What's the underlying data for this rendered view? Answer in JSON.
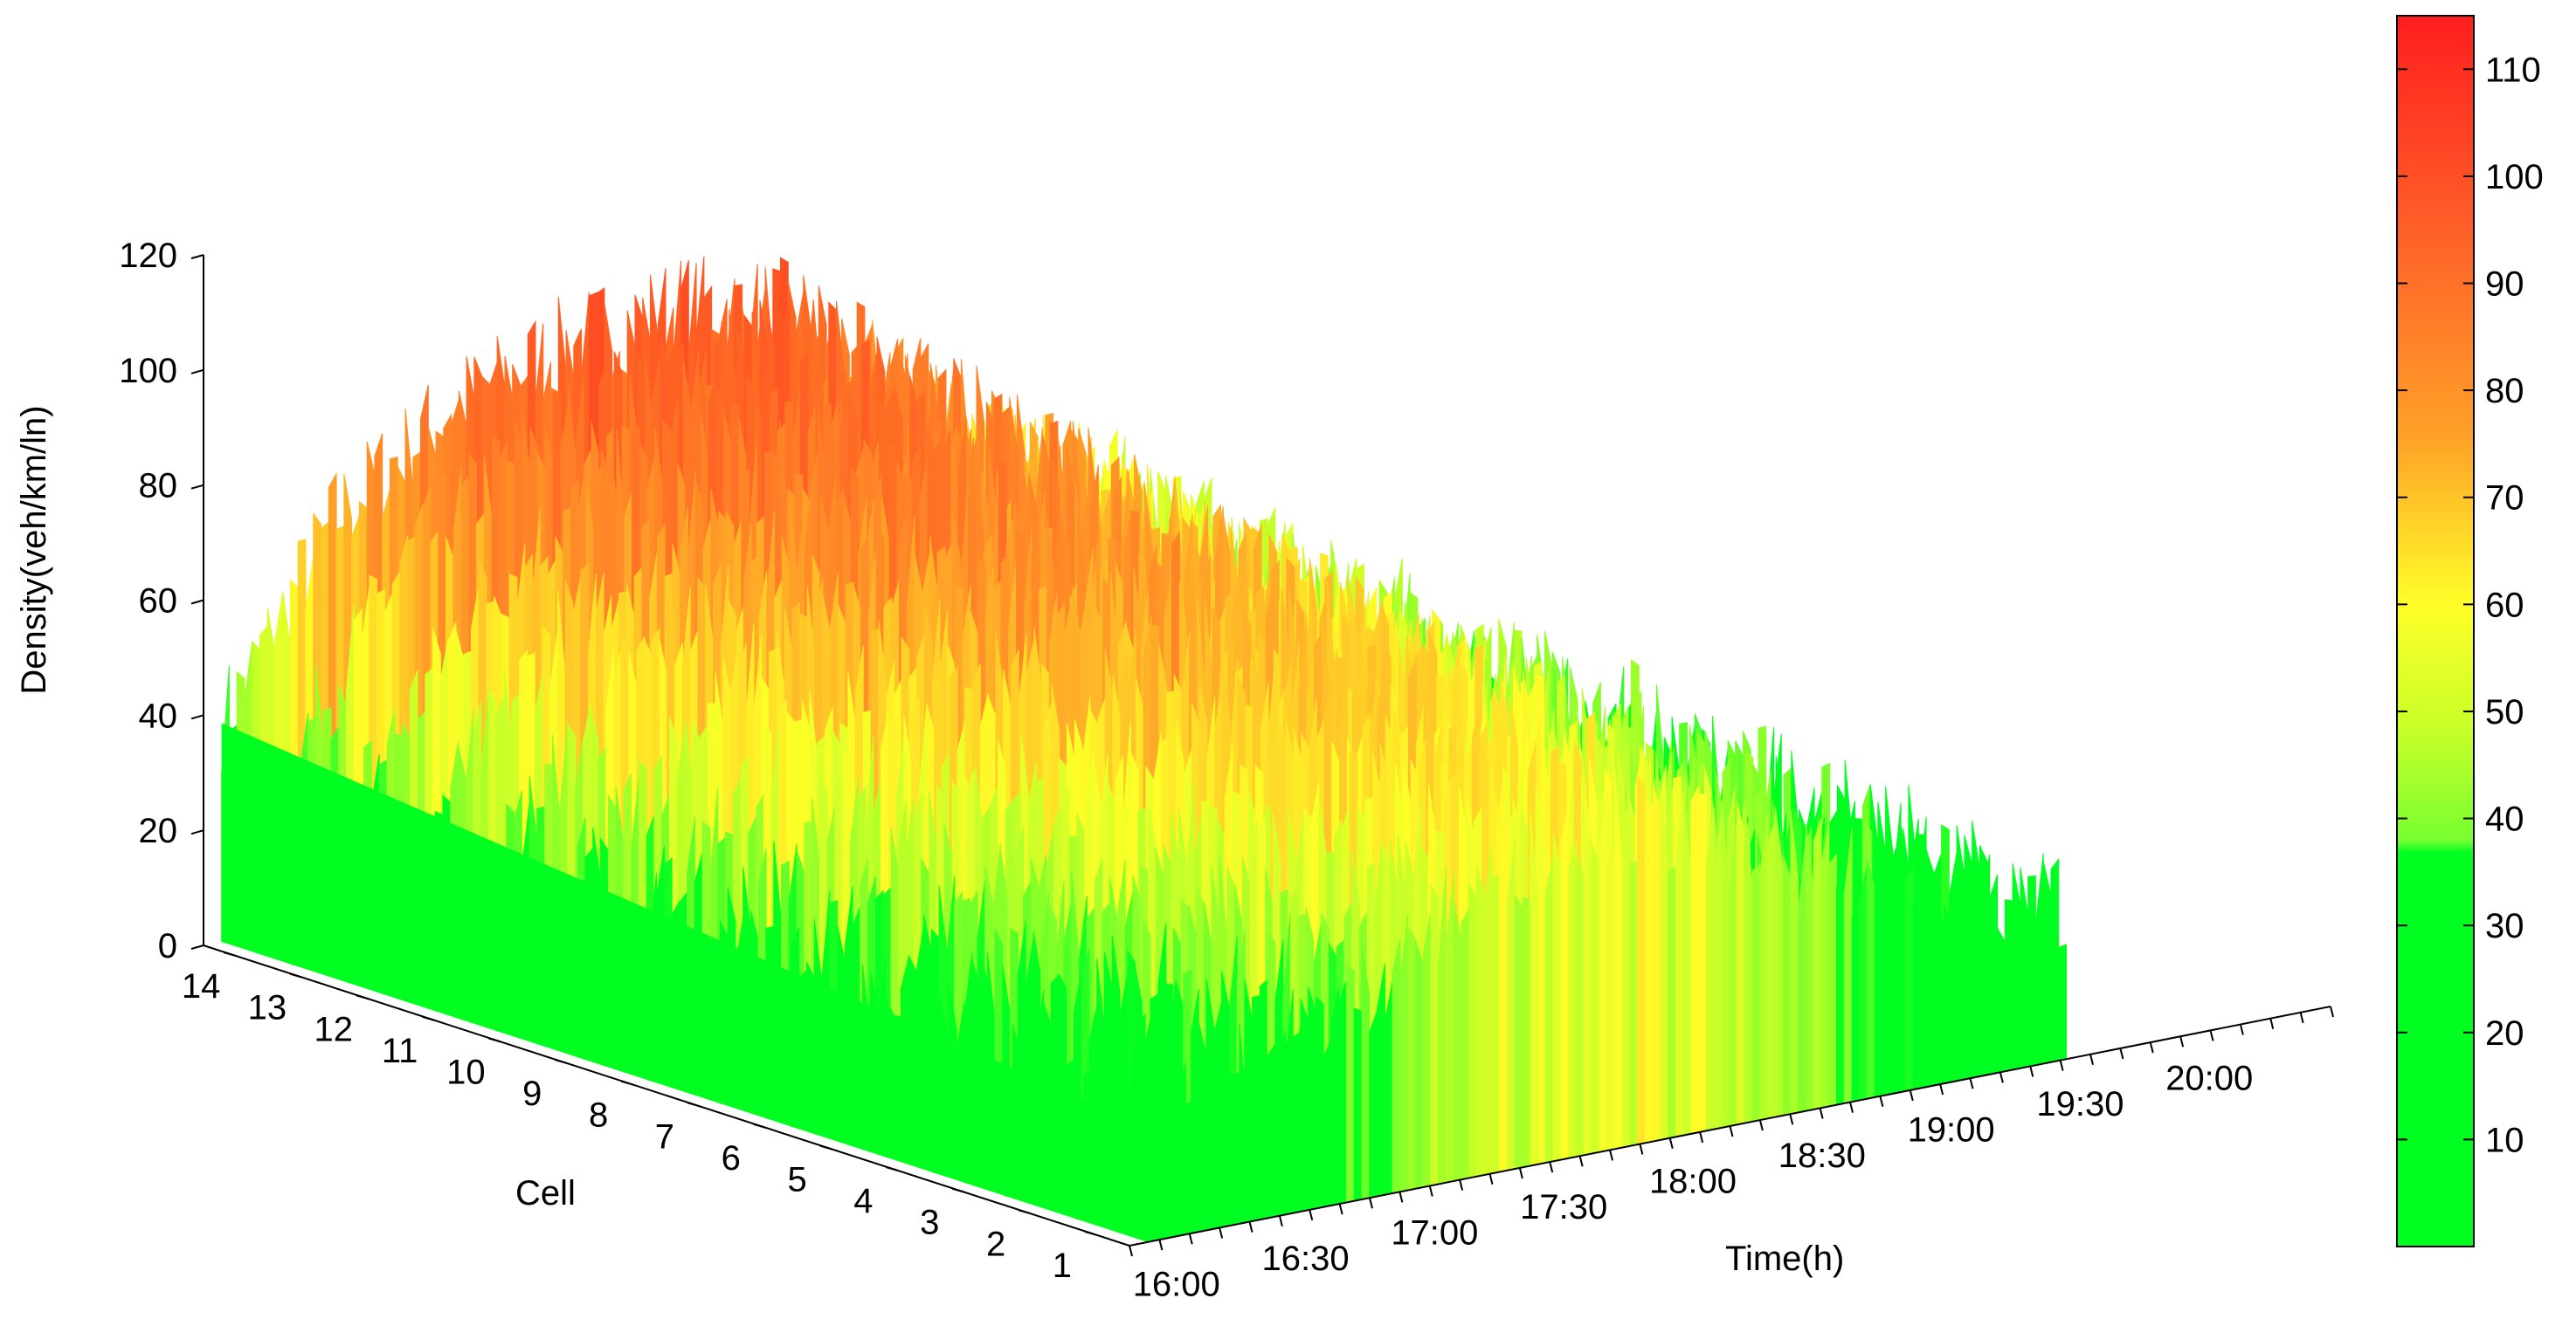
{
  "chart_data": {
    "type": "surface3d",
    "zlabel": "Density(veh/km/ln)",
    "xlabel": "Time(h)",
    "ylabel": "Cell",
    "zlim": [
      0,
      120
    ],
    "z_ticks": [
      "0",
      "20",
      "40",
      "60",
      "80",
      "100",
      "120"
    ],
    "time_ticks": [
      "16:00",
      "16:30",
      "17:00",
      "17:30",
      "18:00",
      "18:30",
      "19:00",
      "19:30",
      "20:00"
    ],
    "cell_ticks": [
      "1",
      "2",
      "3",
      "4",
      "5",
      "6",
      "7",
      "8",
      "9",
      "10",
      "11",
      "12",
      "13",
      "14"
    ],
    "colorbar": {
      "ticks": [
        "10",
        "20",
        "30",
        "40",
        "50",
        "60",
        "70",
        "80",
        "90",
        "100",
        "110"
      ],
      "range": [
        0,
        115
      ],
      "colormap": [
        "#00ff20",
        "#00ff20",
        "#c8ff28",
        "#ffff28",
        "#ff8a28",
        "#ff1e1e"
      ]
    },
    "time_profile": {
      "times": [
        "16:00",
        "16:30",
        "17:00",
        "17:30",
        "18:00",
        "18:30",
        "19:00",
        "19:30",
        "20:00"
      ],
      "near_cell_density": [
        20,
        28,
        38,
        52,
        58,
        50,
        40,
        32,
        28
      ],
      "far_cell_density": [
        38,
        70,
        85,
        92,
        95,
        90,
        72,
        55,
        48
      ]
    }
  }
}
